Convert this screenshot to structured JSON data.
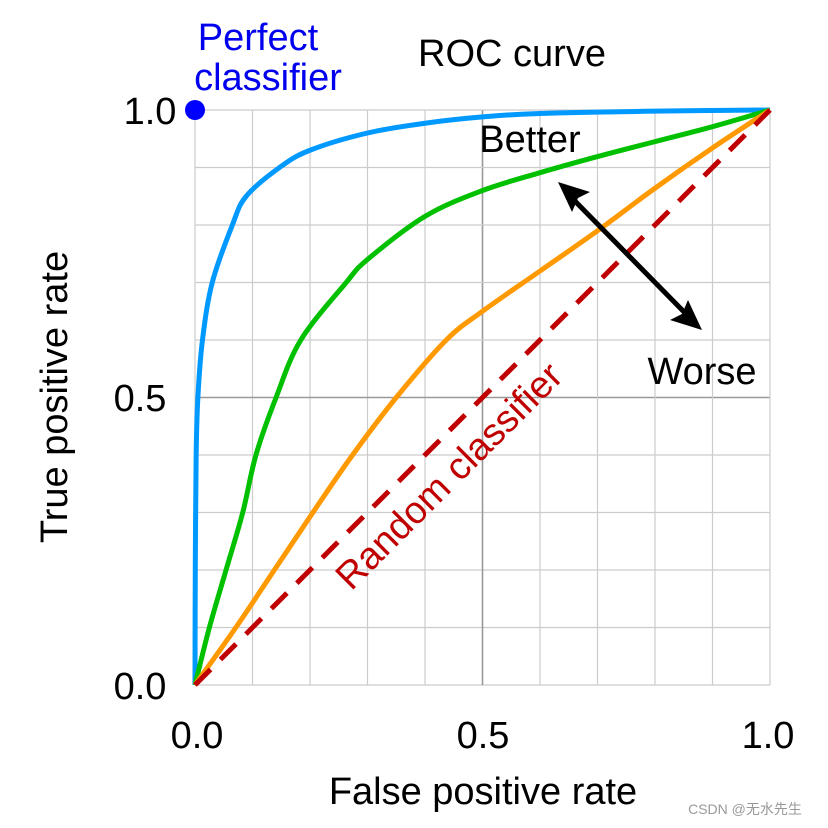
{
  "chart_data": {
    "type": "line",
    "title": "ROC curve",
    "xlabel": "False positive rate",
    "ylabel": "True positive rate",
    "xlim": [
      0,
      1
    ],
    "ylim": [
      0,
      1
    ],
    "x_ticks": [
      "0.0",
      "0.5",
      "1.0"
    ],
    "y_ticks": [
      "0.0",
      "0.5",
      "1.0"
    ],
    "grid": true,
    "grid_step": 0.1,
    "series": [
      {
        "color": "#0099ff",
        "style": "solid",
        "x": [
          0,
          0.0005,
          0.002,
          0.005,
          0.013,
          0.03,
          0.065,
          0.089,
          0.147,
          0.2,
          0.3,
          0.4,
          0.5,
          0.6,
          0.8,
          1.0
        ],
        "y": [
          0,
          0.2,
          0.4,
          0.5,
          0.6,
          0.7,
          0.8,
          0.85,
          0.9,
          0.93,
          0.96,
          0.977,
          0.988,
          0.994,
          0.998,
          1.0
        ]
      },
      {
        "color": "#00c000",
        "style": "solid",
        "x": [
          0,
          0.025,
          0.054,
          0.083,
          0.106,
          0.141,
          0.184,
          0.263,
          0.3,
          0.4,
          0.5,
          0.6,
          0.7,
          0.8,
          0.9,
          1.0
        ],
        "y": [
          0,
          0.1,
          0.2,
          0.3,
          0.4,
          0.5,
          0.6,
          0.7,
          0.74,
          0.815,
          0.86,
          0.891,
          0.919,
          0.945,
          0.971,
          1.0
        ]
      },
      {
        "color": "#ff9900",
        "style": "solid",
        "x": [
          0,
          0.071,
          0.138,
          0.205,
          0.274,
          0.35,
          0.437,
          0.5,
          0.6,
          0.7,
          0.8,
          0.9,
          1.0
        ],
        "y": [
          0,
          0.1,
          0.2,
          0.3,
          0.4,
          0.5,
          0.6,
          0.65,
          0.72,
          0.79,
          0.864,
          0.934,
          1.0
        ]
      },
      {
        "color": "#c00000",
        "style": "dashed",
        "x": [
          0,
          1
        ],
        "y": [
          0,
          1
        ]
      }
    ],
    "points": [
      {
        "label": "Perfect classifier",
        "x": 0,
        "y": 1,
        "color": "#0000ff"
      }
    ],
    "annotations": {
      "perfect_line1": "Perfect",
      "perfect_line2": "classifier",
      "random": "Random classifier",
      "better": "Better",
      "worse": "Worse"
    }
  },
  "watermark": "CSDN @无水先生"
}
